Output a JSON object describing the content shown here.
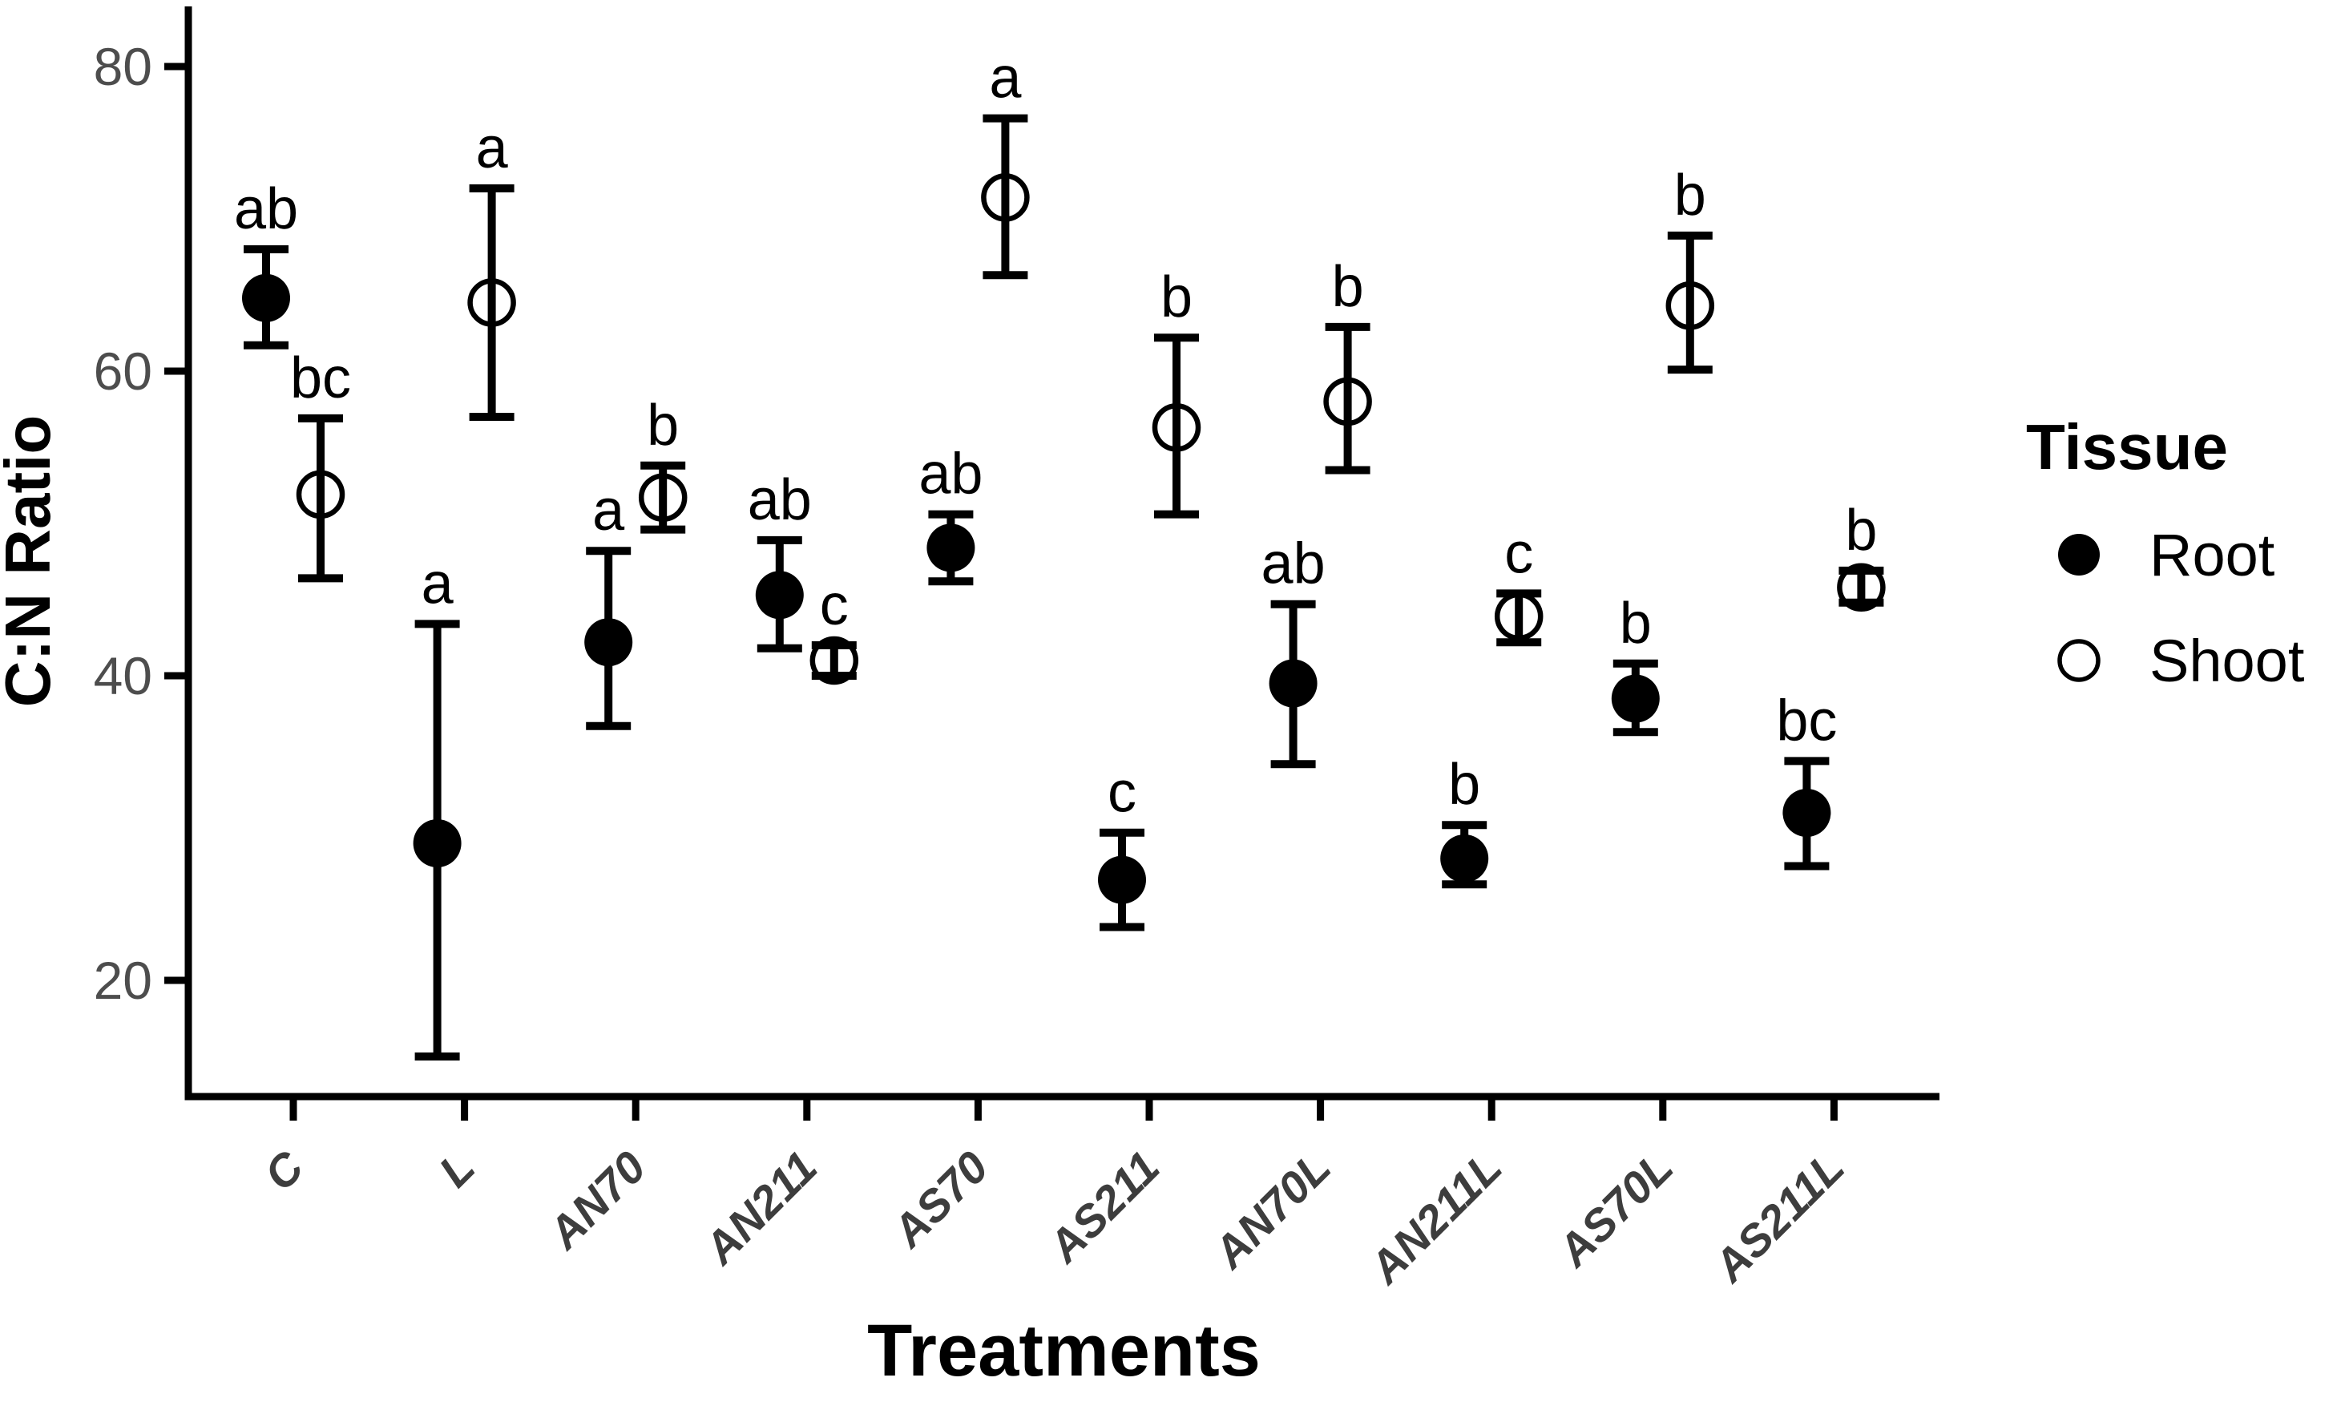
{
  "figure": {
    "background": "#ffffff"
  },
  "chart_data": {
    "type": "scatter",
    "title": "",
    "xlabel": "Treatments",
    "ylabel": "C:N Ratio",
    "categories": [
      "C",
      "L",
      "AN70",
      "AN211",
      "AS70",
      "AS211",
      "AN70L",
      "AN211L",
      "AS70L",
      "AS211L"
    ],
    "y_ticks": [
      20,
      40,
      60,
      80
    ],
    "ylim": [
      12,
      84
    ],
    "grid": false,
    "point_dodge": "Root left, Shoot right within each treatment",
    "legend": {
      "title": "Tissue",
      "position": "right",
      "entries": [
        {
          "label": "Root",
          "marker": "filled-circle"
        },
        {
          "label": "Shoot",
          "marker": "open-circle"
        }
      ]
    },
    "series": [
      {
        "name": "Root",
        "marker": "filled-circle",
        "color": "#000000",
        "values": [
          64.8,
          29.0,
          42.2,
          45.3,
          48.4,
          26.6,
          39.5,
          28.0,
          38.5,
          31.0
        ],
        "err_low": [
          61.7,
          15.0,
          36.7,
          41.8,
          46.2,
          23.5,
          34.2,
          26.3,
          36.3,
          27.5
        ],
        "err_high": [
          68.0,
          43.4,
          48.2,
          48.9,
          50.6,
          29.7,
          44.7,
          30.2,
          40.8,
          34.4
        ],
        "letters": [
          "ab",
          "a",
          "a",
          "ab",
          "ab",
          "c",
          "ab",
          "b",
          "b",
          "bc"
        ]
      },
      {
        "name": "Shoot",
        "marker": "open-circle",
        "color": "#000000",
        "values": [
          51.9,
          64.5,
          51.7,
          41.0,
          71.4,
          56.3,
          58.0,
          43.9,
          64.3,
          45.8
        ],
        "err_low": [
          46.4,
          57.0,
          49.6,
          40.0,
          66.3,
          50.6,
          53.5,
          42.2,
          60.1,
          44.8
        ],
        "err_high": [
          56.9,
          72.0,
          53.8,
          42.0,
          76.6,
          62.2,
          62.9,
          45.4,
          68.9,
          46.9
        ],
        "letters": [
          "bc",
          "a",
          "b",
          "c",
          "a",
          "b",
          "b",
          "c",
          "b",
          "b"
        ]
      }
    ],
    "style": {
      "axis_color": "#000000",
      "marker_color": "#000000",
      "sig_letter_color": "#000000",
      "tick_label_color": "#4d4d4d",
      "category_label_color": "#3d3d3d",
      "axis_title_color": "#000000",
      "background": "#ffffff"
    }
  }
}
